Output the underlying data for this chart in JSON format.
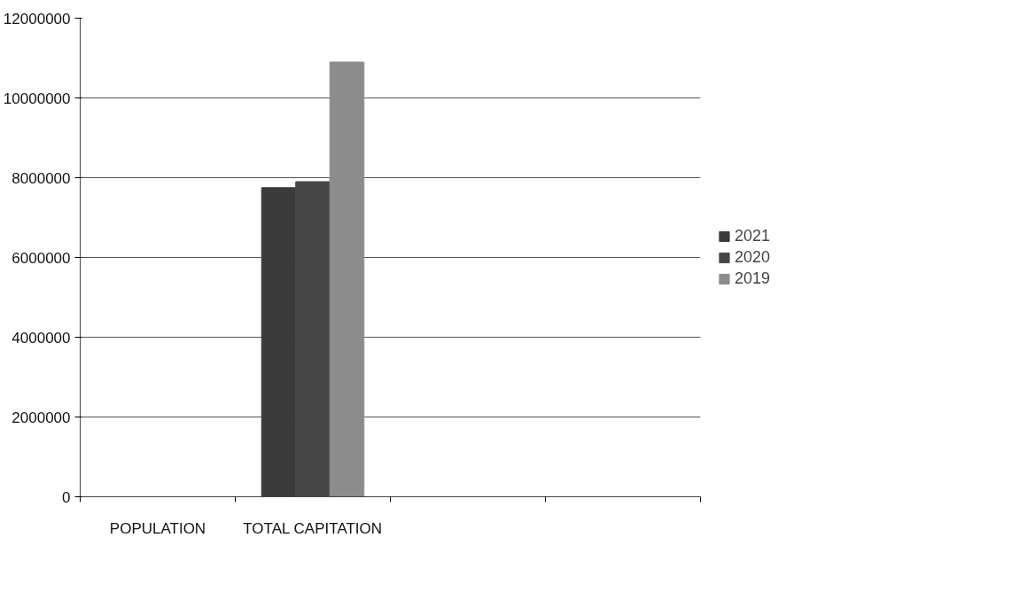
{
  "chart_data": {
    "type": "bar",
    "categories": [
      "POPULATION",
      "TOTAL CAPITATION",
      null,
      null
    ],
    "series": [
      {
        "name": "2021",
        "color": "#3b3b3b",
        "values": [
          0,
          7750000,
          null,
          null
        ]
      },
      {
        "name": "2020",
        "color": "#474747",
        "values": [
          0,
          7900000,
          null,
          null
        ]
      },
      {
        "name": "2019",
        "color": "#8c8c8c",
        "values": [
          0,
          10900000,
          null,
          null
        ]
      }
    ],
    "ylim": [
      0,
      12000000
    ],
    "yticks": [
      0,
      2000000,
      4000000,
      6000000,
      8000000,
      10000000,
      12000000
    ],
    "grid": "y",
    "legend": "right"
  }
}
